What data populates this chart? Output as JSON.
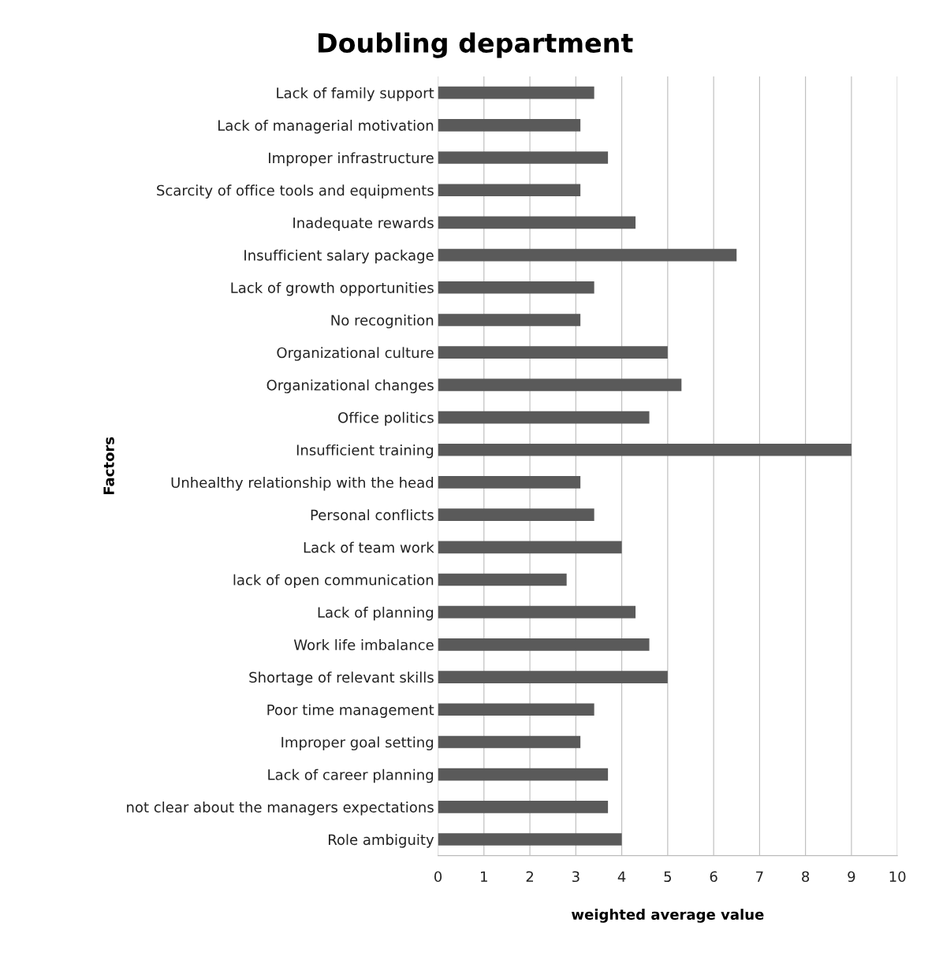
{
  "chart_data": {
    "type": "bar",
    "orientation": "horizontal",
    "title": "Doubling department",
    "xlabel": "weighted average value",
    "ylabel": "Factors",
    "categories": [
      "Lack of family support",
      "Lack of managerial motivation",
      "Improper infrastructure",
      "Scarcity of office tools and equipments",
      "Inadequate rewards",
      "Insufficient salary package",
      "Lack of growth opportunities",
      "No recognition",
      "Organizational culture",
      "Organizational changes",
      "Office politics",
      "Insufficient training",
      "Unhealthy relationship with the head",
      "Personal conflicts",
      "Lack of team work",
      "lack of open communication",
      "Lack of planning",
      "Work life imbalance",
      "Shortage of relevant skills",
      "Poor time management",
      "Improper goal setting",
      "Lack of career planning",
      "not clear about the managers expectations",
      "Role ambiguity"
    ],
    "values": [
      3.4,
      3.1,
      3.7,
      3.1,
      4.3,
      6.5,
      3.4,
      3.1,
      5.0,
      5.3,
      4.6,
      9.0,
      3.1,
      3.4,
      4.0,
      2.8,
      4.3,
      4.6,
      5.0,
      3.4,
      3.1,
      3.7,
      3.7,
      4.0
    ],
    "color": "#5a5a5a",
    "xlim": [
      0,
      10
    ],
    "xticks": [
      0,
      1,
      2,
      3,
      4,
      5,
      6,
      7,
      8,
      9,
      10
    ],
    "grid": "x",
    "legend": false
  }
}
